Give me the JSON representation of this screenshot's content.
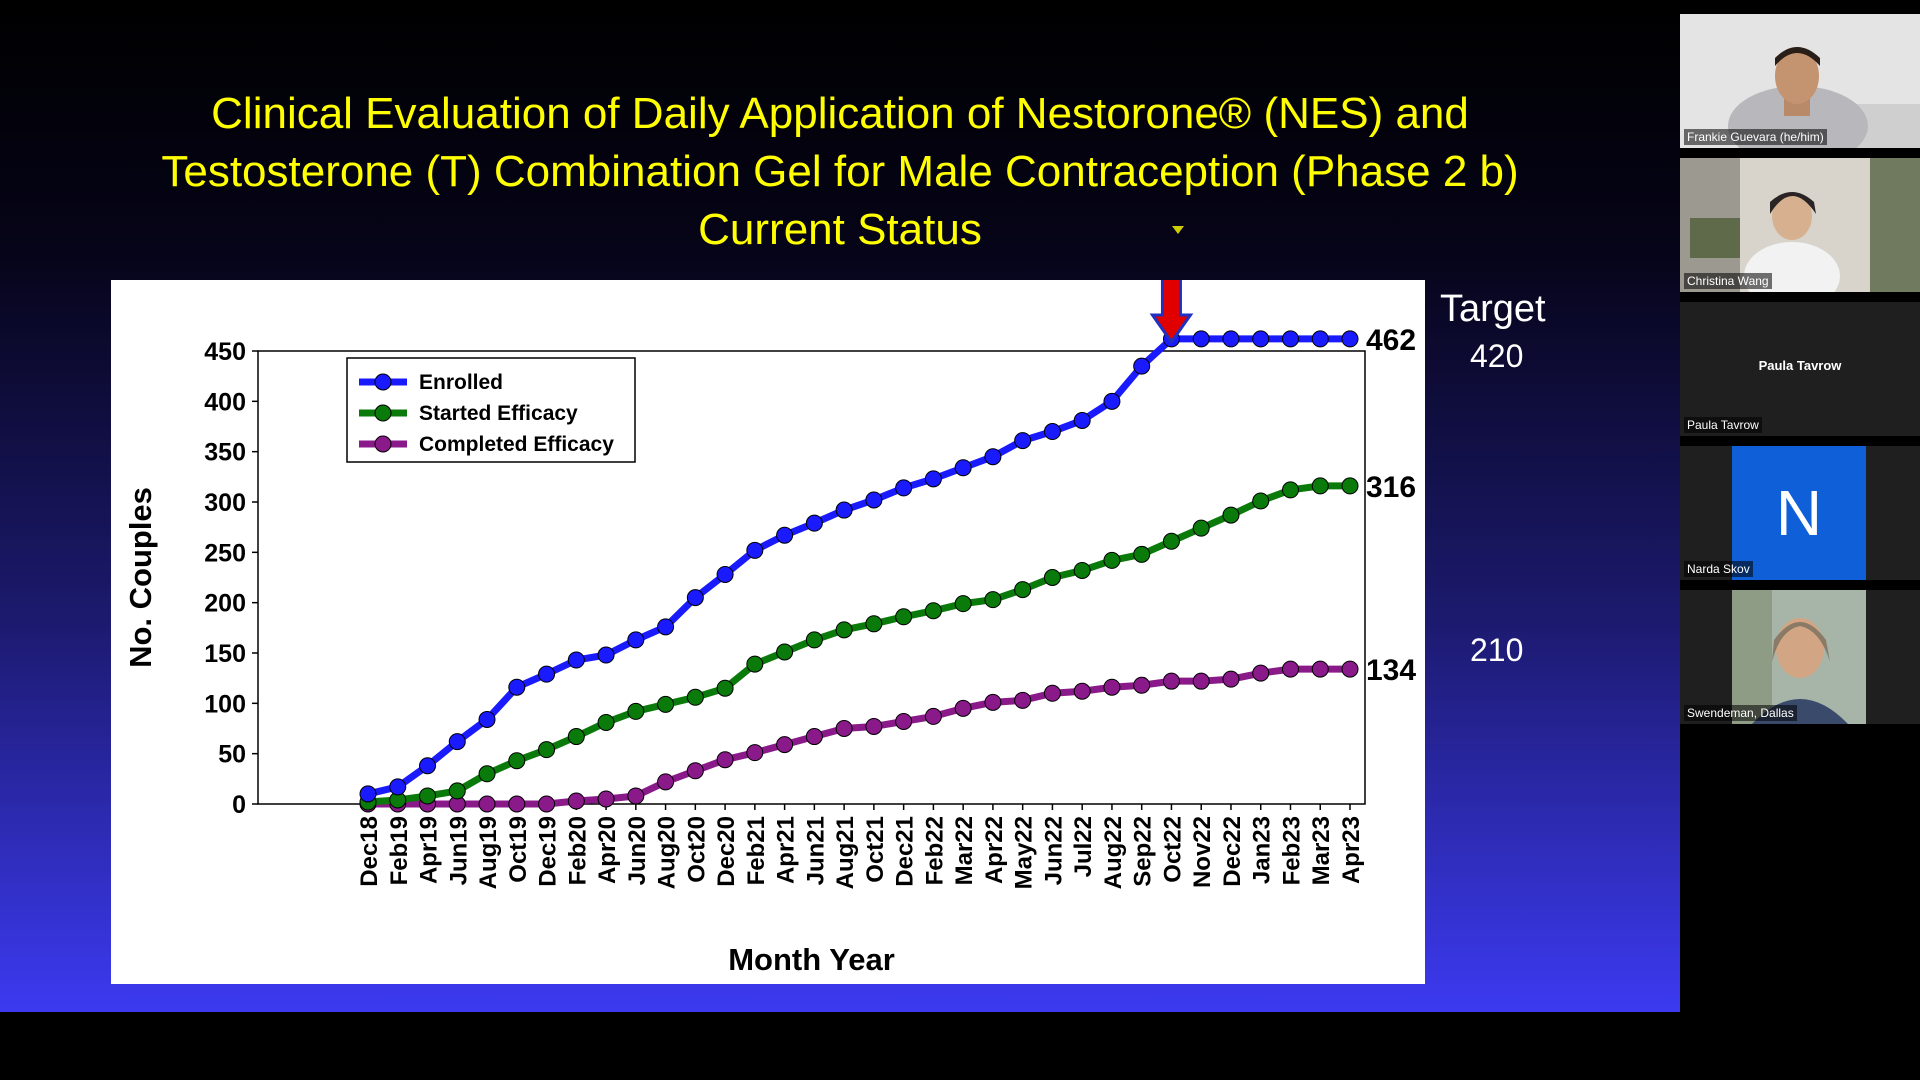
{
  "slide": {
    "title_lines": [
      "Clinical Evaluation of Daily Application of Nestorone® (NES) and",
      "Testosterone (T) Combination Gel for Male Contraception  (Phase 2 b)",
      "Current Status"
    ],
    "target_label": "Target",
    "target_enrolled": "420",
    "target_completed": "210",
    "end_labels": [
      "462",
      "316",
      "134"
    ]
  },
  "colors": {
    "title": "#ffff00",
    "enrolled": "#1a1aff",
    "started": "#0a7a0a",
    "completed": "#8a1a8a",
    "arrow": "#e00000",
    "arrow_border": "#2030c0"
  },
  "chart_data": {
    "type": "line",
    "xlabel": "Month Year",
    "ylabel": "No. Couples",
    "ylim": [
      0,
      450
    ],
    "y_ticks": [
      0,
      50,
      100,
      150,
      200,
      250,
      300,
      350,
      400,
      450
    ],
    "x_tick_labels": [
      "Dec18",
      "Feb19",
      "Apr19",
      "Jun19",
      "Aug19",
      "Oct19",
      "Dec19",
      "Feb20",
      "Apr20",
      "Jun20",
      "Aug20",
      "Oct20",
      "Dec20",
      "Feb21",
      "Apr21",
      "Jun21",
      "Aug21",
      "Oct21",
      "Dec21",
      "Feb22",
      "Mar22",
      "Apr22",
      "May22",
      "Jun22",
      "Jul22",
      "Aug22",
      "Sep22",
      "Oct22",
      "Nov22",
      "Dec22",
      "Jan23",
      "Feb23",
      "Mar23",
      "Apr23"
    ],
    "legend_position": "top-left",
    "series": [
      {
        "name": "Enrolled",
        "values": [
          10,
          17,
          38,
          62,
          84,
          116,
          129,
          143,
          148,
          163,
          176,
          205,
          228,
          252,
          267,
          279,
          292,
          302,
          314,
          323,
          334,
          345,
          361,
          370,
          381,
          400,
          435,
          462,
          462,
          462,
          462,
          462,
          462,
          462
        ]
      },
      {
        "name": "Started Efficacy",
        "values": [
          2,
          4,
          8,
          13,
          30,
          43,
          54,
          67,
          81,
          92,
          99,
          106,
          115,
          139,
          151,
          163,
          173,
          179,
          186,
          192,
          199,
          203,
          213,
          225,
          232,
          242,
          248,
          261,
          274,
          287,
          301,
          312,
          316,
          316
        ]
      },
      {
        "name": "Completed Efficacy",
        "values": [
          0,
          0,
          0,
          0,
          0,
          0,
          0,
          3,
          5,
          8,
          22,
          33,
          44,
          51,
          59,
          67,
          75,
          77,
          82,
          87,
          95,
          101,
          103,
          110,
          112,
          116,
          118,
          122,
          122,
          124,
          130,
          134,
          134,
          134
        ]
      }
    ],
    "annotation": "arrow marking Oct22"
  },
  "participants": [
    {
      "name": "Frankie Guevara (he/him)"
    },
    {
      "name": "Christina Wang"
    },
    {
      "name": "Paula Tavrow",
      "center_name": "Paula Tavrow"
    },
    {
      "name": "Narda Skov",
      "initial": "N"
    },
    {
      "name": "Swendeman, Dallas"
    }
  ]
}
